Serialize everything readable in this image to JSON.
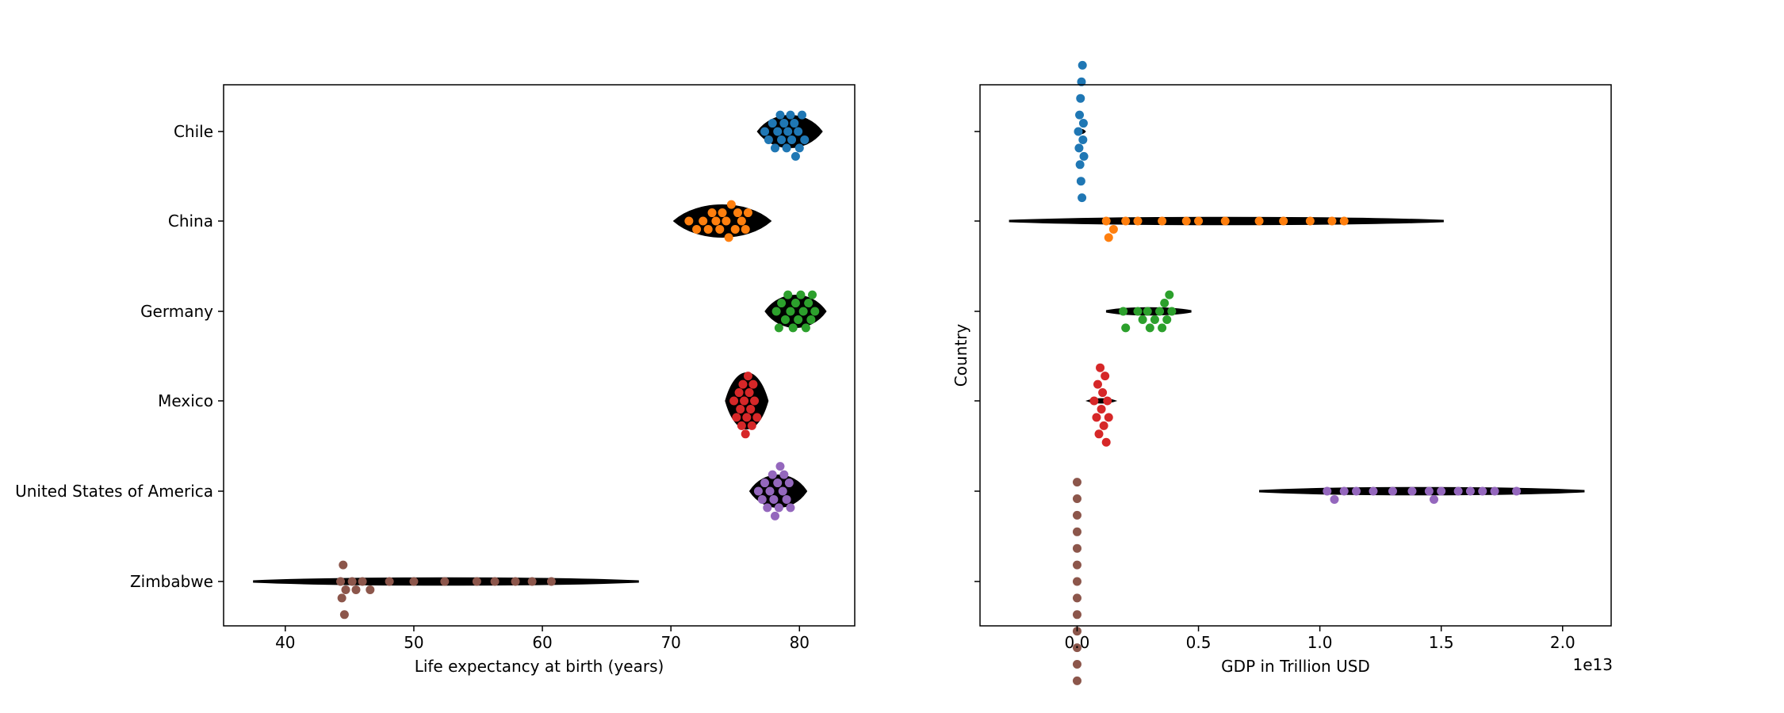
{
  "figure": {
    "scale_exponent_label": "1e13"
  },
  "chart_data": [
    {
      "type": "violin",
      "overlay": "swarm",
      "orientation": "horizontal",
      "xlabel": "Life expectancy at birth (years)",
      "ylabel": "",
      "xlim": [
        35.2,
        84.3
      ],
      "xticks": [
        40,
        50,
        60,
        70,
        80
      ],
      "xtick_labels": [
        "40",
        "50",
        "60",
        "70",
        "80"
      ],
      "categories": [
        "Chile",
        "China",
        "Germany",
        "Mexico",
        "United States of America",
        "Zimbabwe"
      ],
      "violin_color": "#000000",
      "violins": [
        {
          "category": "Chile",
          "min": 76.8,
          "max": 81.7
        },
        {
          "category": "China",
          "min": 70.3,
          "max": 77.7
        },
        {
          "category": "Germany",
          "min": 77.4,
          "max": 82.0
        },
        {
          "category": "Mexico",
          "min": 74.3,
          "max": 77.5
        },
        {
          "category": "United States of America",
          "min": 76.2,
          "max": 80.5
        },
        {
          "category": "Zimbabwe",
          "min": 37.5,
          "max": 67.5
        }
      ],
      "series": [
        {
          "category": "Chile",
          "color": "#1f77b4",
          "values": [
            77.3,
            77.6,
            77.9,
            78.1,
            78.3,
            78.5,
            78.6,
            78.8,
            79.0,
            79.1,
            79.3,
            79.4,
            79.6,
            79.7,
            79.9,
            80.0,
            80.2,
            80.4
          ]
        },
        {
          "category": "China",
          "color": "#ff7f0e",
          "values": [
            71.4,
            72.0,
            72.5,
            72.9,
            73.2,
            73.5,
            73.8,
            74.0,
            74.3,
            74.5,
            74.7,
            75.0,
            75.2,
            75.5,
            75.8,
            76.0
          ]
        },
        {
          "category": "Germany",
          "color": "#2ca02c",
          "values": [
            78.2,
            78.4,
            78.6,
            78.9,
            79.1,
            79.3,
            79.5,
            79.7,
            79.9,
            80.1,
            80.3,
            80.5,
            80.7,
            80.9,
            81.0,
            81.2
          ]
        },
        {
          "category": "Mexico",
          "color": "#d62728",
          "values": [
            74.9,
            75.1,
            75.3,
            75.4,
            75.5,
            75.6,
            75.7,
            75.8,
            75.9,
            76.0,
            76.1,
            76.2,
            76.3,
            76.4,
            76.5,
            76.7
          ]
        },
        {
          "category": "United States of America",
          "color": "#9467bd",
          "values": [
            76.8,
            77.1,
            77.3,
            77.5,
            77.7,
            77.9,
            78.0,
            78.1,
            78.3,
            78.4,
            78.5,
            78.7,
            78.8,
            79.0,
            79.2,
            79.3
          ]
        },
        {
          "category": "Zimbabwe",
          "color": "#8c564b",
          "values": [
            44.3,
            44.4,
            44.5,
            44.6,
            44.7,
            45.2,
            45.5,
            46.0,
            46.6,
            48.1,
            50.0,
            52.4,
            54.9,
            56.3,
            57.9,
            59.2,
            60.7
          ]
        }
      ]
    },
    {
      "type": "violin",
      "overlay": "swarm",
      "orientation": "horizontal",
      "xlabel": "GDP in Trillion USD",
      "ylabel": "Country",
      "xlim": [
        -0.4,
        2.2
      ],
      "x_scale_factor": 10000000000000.0,
      "xticks": [
        0.0,
        0.5,
        1.0,
        1.5,
        2.0
      ],
      "xtick_labels": [
        "0.0",
        "0.5",
        "1.0",
        "1.5",
        "2.0"
      ],
      "categories": [
        "Chile",
        "China",
        "Germany",
        "Mexico",
        "United States of America",
        "Zimbabwe"
      ],
      "violin_color": "#000000",
      "violins": [
        {
          "category": "Chile",
          "min": 0.0,
          "max": 0.03
        },
        {
          "category": "China",
          "min": -0.28,
          "max": 1.51
        },
        {
          "category": "Germany",
          "min": 0.12,
          "max": 0.47
        },
        {
          "category": "Mexico",
          "min": 0.05,
          "max": 0.15
        },
        {
          "category": "United States of America",
          "min": 0.75,
          "max": 2.09
        },
        {
          "category": "Zimbabwe",
          "min": 0.0,
          "max": 0.002
        }
      ],
      "series": [
        {
          "category": "Chile",
          "color": "#1f77b4",
          "values": [
            0.005,
            0.008,
            0.01,
            0.012,
            0.014,
            0.016,
            0.018,
            0.02,
            0.022,
            0.024,
            0.026,
            0.028
          ]
        },
        {
          "category": "China",
          "color": "#ff7f0e",
          "values": [
            0.12,
            0.13,
            0.15,
            0.2,
            0.25,
            0.35,
            0.45,
            0.5,
            0.61,
            0.75,
            0.85,
            0.96,
            1.05,
            1.1
          ]
        },
        {
          "category": "Germany",
          "color": "#2ca02c",
          "values": [
            0.19,
            0.2,
            0.25,
            0.27,
            0.29,
            0.3,
            0.32,
            0.34,
            0.35,
            0.36,
            0.37,
            0.38,
            0.39
          ]
        },
        {
          "category": "Mexico",
          "color": "#d62728",
          "values": [
            0.07,
            0.08,
            0.085,
            0.09,
            0.095,
            0.1,
            0.105,
            0.11,
            0.115,
            0.12,
            0.125,
            0.13
          ]
        },
        {
          "category": "United States of America",
          "color": "#9467bd",
          "values": [
            1.03,
            1.06,
            1.1,
            1.15,
            1.22,
            1.3,
            1.38,
            1.45,
            1.47,
            1.5,
            1.57,
            1.62,
            1.67,
            1.72,
            1.81
          ]
        },
        {
          "category": "Zimbabwe",
          "color": "#8c564b",
          "values": [
            0.0,
            0.0,
            0.0,
            0.0,
            0.0,
            0.0,
            0.0,
            0.0,
            0.0,
            0.0,
            0.0,
            0.0,
            0.0
          ]
        }
      ]
    }
  ]
}
